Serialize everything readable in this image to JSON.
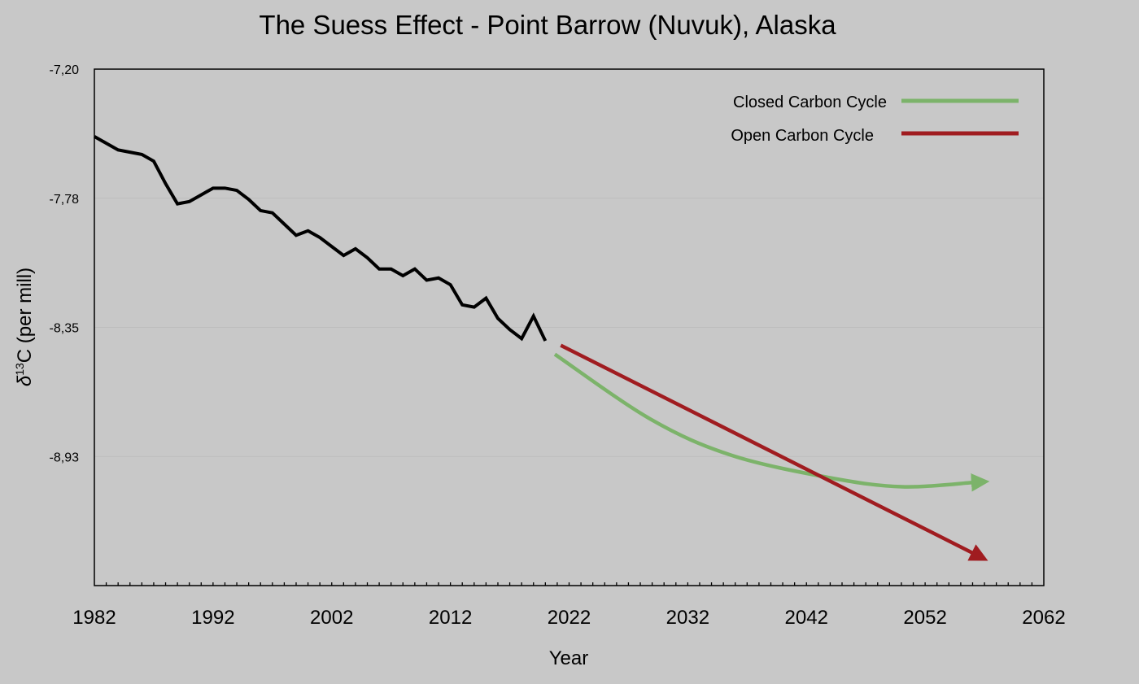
{
  "colors": {
    "background": "#c8c8c8",
    "history": "#000000",
    "closed": "#7cb36a",
    "open": "#a01c20",
    "grid": "#bdbdbd"
  },
  "chart_data": {
    "type": "line",
    "title": "The Suess Effect - Point Barrow (Nuvuk), Alaska",
    "xlabel": "Year",
    "ylabel_prefix": "δ",
    "ylabel_sup": "13",
    "ylabel_rest": "C (per mill)",
    "xlim": [
      1982,
      2062
    ],
    "ylim": [
      -9.5,
      -7.2
    ],
    "xticks": [
      "1982",
      "1992",
      "2002",
      "2012",
      "2022",
      "2032",
      "2042",
      "2052",
      "2062"
    ],
    "xtick_values": [
      1982,
      1992,
      2002,
      2012,
      2022,
      2032,
      2042,
      2052,
      2062
    ],
    "yticks": [
      "-7,20",
      "-7,78",
      "-8,35",
      "-8,93"
    ],
    "ytick_values": [
      -7.2,
      -7.775,
      -8.35,
      -8.925
    ],
    "grid": "horizontal",
    "legend_position": "top-right",
    "series": [
      {
        "key": "history",
        "x": [
          1982,
          1983,
          1984,
          1985,
          1986,
          1987,
          1988,
          1989,
          1990,
          1991,
          1992,
          1993,
          1994,
          1995,
          1996,
          1997,
          1998,
          1999,
          2000,
          2001,
          2002,
          2003,
          2004,
          2005,
          2006,
          2007,
          2008,
          2009,
          2010,
          2011,
          2012,
          2013,
          2014,
          2015,
          2016,
          2017,
          2018,
          2019,
          2020
        ],
        "y": [
          -7.5,
          -7.53,
          -7.56,
          -7.57,
          -7.58,
          -7.61,
          -7.71,
          -7.8,
          -7.79,
          -7.76,
          -7.73,
          -7.73,
          -7.74,
          -7.78,
          -7.83,
          -7.84,
          -7.89,
          -7.94,
          -7.92,
          -7.95,
          -7.99,
          -8.03,
          -8.0,
          -8.04,
          -8.09,
          -8.09,
          -8.12,
          -8.09,
          -8.14,
          -8.13,
          -8.16,
          -8.25,
          -8.26,
          -8.22,
          -8.31,
          -8.36,
          -8.4,
          -8.3,
          -8.41
        ]
      },
      {
        "key": "closed",
        "name": "Closed Carbon Cycle",
        "x": [
          2020.8,
          2028.9,
          2035.7,
          2044.0,
          2050.1,
          2056.2
        ],
        "y": [
          -8.47,
          -8.76,
          -8.92,
          -9.02,
          -9.06,
          -9.04
        ]
      },
      {
        "key": "open",
        "name": "Open Carbon Cycle",
        "x": [
          2021.3,
          2056.2
        ],
        "y": [
          -8.43,
          -9.36
        ]
      }
    ]
  }
}
